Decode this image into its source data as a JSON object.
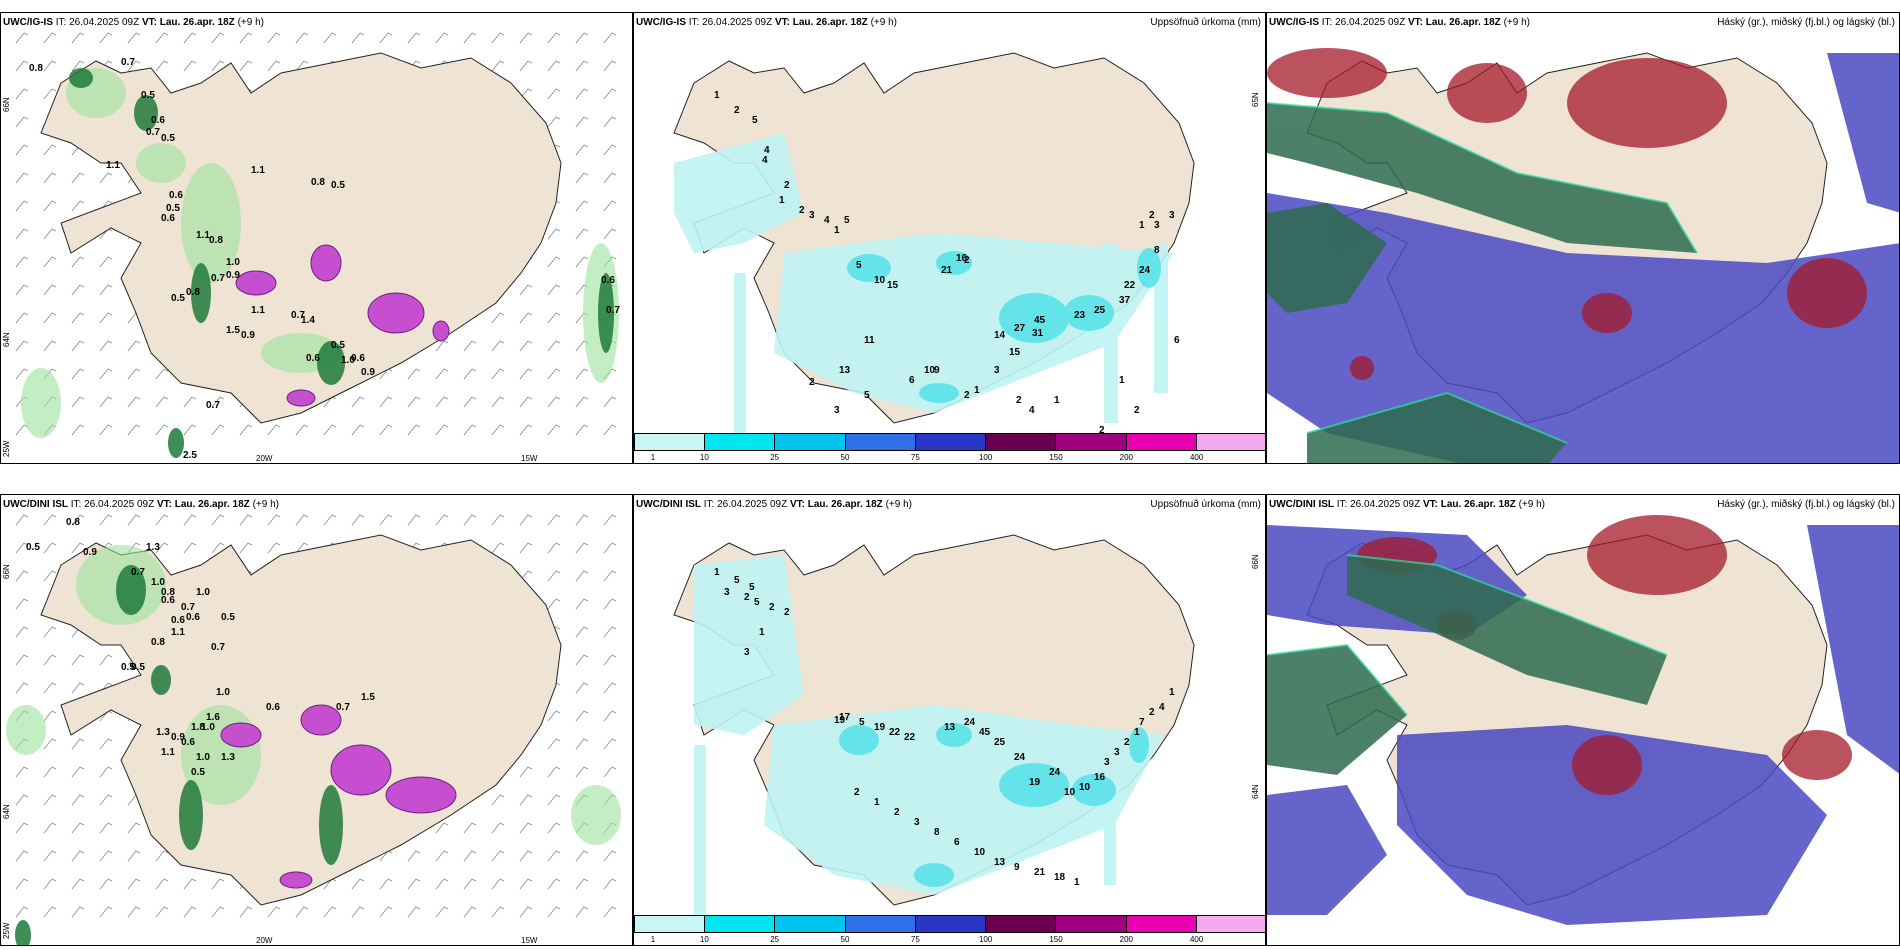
{
  "panels": {
    "p1": {
      "model": "UWC/IG-IS",
      "it_label": "IT:",
      "it": "26.04.2025 09Z",
      "vt_label": "VT:",
      "vt": "Lau. 26.apr. 18Z",
      "lead": "(+9 h)",
      "field": ""
    },
    "p2": {
      "model": "UWC/IG-IS",
      "it_label": "IT:",
      "it": "26.04.2025 09Z",
      "vt_label": "VT:",
      "vt": "Lau. 26.apr. 18Z",
      "lead": "(+9 h)",
      "field": "Uppsöfnuð úrkoma (mm)"
    },
    "p3": {
      "model": "UWC/IG-IS",
      "it_label": "IT:",
      "it": "26.04.2025 09Z",
      "vt_label": "VT:",
      "vt": "Lau. 26.apr. 18Z",
      "lead": "(+9 h)",
      "field": "Háský (gr.), miðský (fj.bl.) og lágský (bl.)"
    },
    "p4": {
      "model": "UWC/DINI ISL",
      "it_label": "IT:",
      "it": "26.04.2025 09Z",
      "vt_label": "VT:",
      "vt": "Lau. 26.apr. 18Z",
      "lead": "(+9 h)",
      "field": ""
    },
    "p5": {
      "model": "UWC/DINI ISL",
      "it_label": "IT:",
      "it": "26.04.2025 09Z",
      "vt_label": "VT:",
      "vt": "Lau. 26.apr. 18Z",
      "lead": "(+9 h)",
      "field": "Uppsöfnuð úrkoma (mm)"
    },
    "p6": {
      "model": "UWC/DINI ISL",
      "it_label": "IT:",
      "it": "26.04.2025 09Z",
      "vt_label": "VT:",
      "vt": "Lau. 26.apr. 18Z",
      "lead": "(+9 h)",
      "field": "Háský (gr.), miðský (fj.bl.) og lágský (bl.)"
    }
  },
  "axes": {
    "lat66": "66N",
    "lat64": "64N",
    "lon25": "25W",
    "lon20": "20W",
    "lon15": "15W",
    "lat65": "65N"
  },
  "colorbar": {
    "ticks": [
      "1",
      "10",
      "25",
      "50",
      "75",
      "100",
      "150",
      "200",
      "400"
    ],
    "colors": [
      "#c8f5f5",
      "#00e6f0",
      "#00c3ee",
      "#2f6fe8",
      "#2a36c8",
      "#6a0050",
      "#a0007e",
      "#e800b0",
      "#f4aaf0"
    ]
  },
  "colors": {
    "land": "#efe3d4",
    "precip_light": "#bff3f3",
    "precip_mid": "#54e2e8",
    "snow_green": "#1e7a3a",
    "snow_pink": "#c64fd0",
    "high_cloud": "#2e6b4f",
    "mid_cloud": "#a4192a",
    "low_cloud": "#4a49c2"
  },
  "labels": {
    "p1": [
      "0.8",
      "0.7",
      "0.5",
      "0.6",
      "0.7",
      "0.5",
      "1.1",
      "1.1",
      "0.8",
      "0.5",
      "0.6",
      "0.5",
      "0.6",
      "1.1",
      "0.8",
      "1.0",
      "0.7",
      "0.9",
      "0.7",
      "0.5",
      "0.8",
      "1.5",
      "0.9",
      "0.6",
      "0.5",
      "1.0",
      "0.6",
      "0.9",
      "0.6",
      "0.7",
      "1.1",
      "1.4",
      "0.7",
      "2.5"
    ],
    "p2": [
      "1",
      "2",
      "5",
      "4",
      "4",
      "2",
      "1",
      "2",
      "3",
      "4",
      "5",
      "1",
      "5",
      "10",
      "15",
      "21",
      "16",
      "2",
      "45",
      "31",
      "27",
      "15",
      "14",
      "23",
      "25",
      "37",
      "22",
      "24",
      "8",
      "1",
      "2",
      "3",
      "3",
      "6",
      "2",
      "1",
      "2",
      "1",
      "4",
      "2",
      "3",
      "1",
      "2",
      "9",
      "10",
      "6",
      "5",
      "3",
      "11",
      "13",
      "2"
    ],
    "p4": [
      "0.8",
      "0.5",
      "0.9",
      "1.3",
      "0.7",
      "1.0",
      "0.8",
      "0.6",
      "0.7",
      "0.6",
      "1.0",
      "0.6",
      "1.1",
      "0.5",
      "0.8",
      "0.7",
      "0.5",
      "0.5",
      "1.0",
      "1.6",
      "1.0",
      "0.6",
      "0.7",
      "1.5",
      "1.3",
      "0.9",
      "1.8",
      "0.6",
      "1.1",
      "1.0",
      "1.3",
      "0.5"
    ],
    "p5": [
      "1",
      "5",
      "5",
      "3",
      "2",
      "5",
      "2",
      "2",
      "1",
      "3",
      "17",
      "19",
      "5",
      "19",
      "22",
      "22",
      "13",
      "24",
      "45",
      "25",
      "24",
      "19",
      "24",
      "10",
      "10",
      "16",
      "3",
      "3",
      "2",
      "1",
      "7",
      "2",
      "4",
      "1",
      "2",
      "1",
      "2",
      "3",
      "8",
      "6",
      "10",
      "13",
      "9",
      "21",
      "18",
      "1"
    ]
  }
}
